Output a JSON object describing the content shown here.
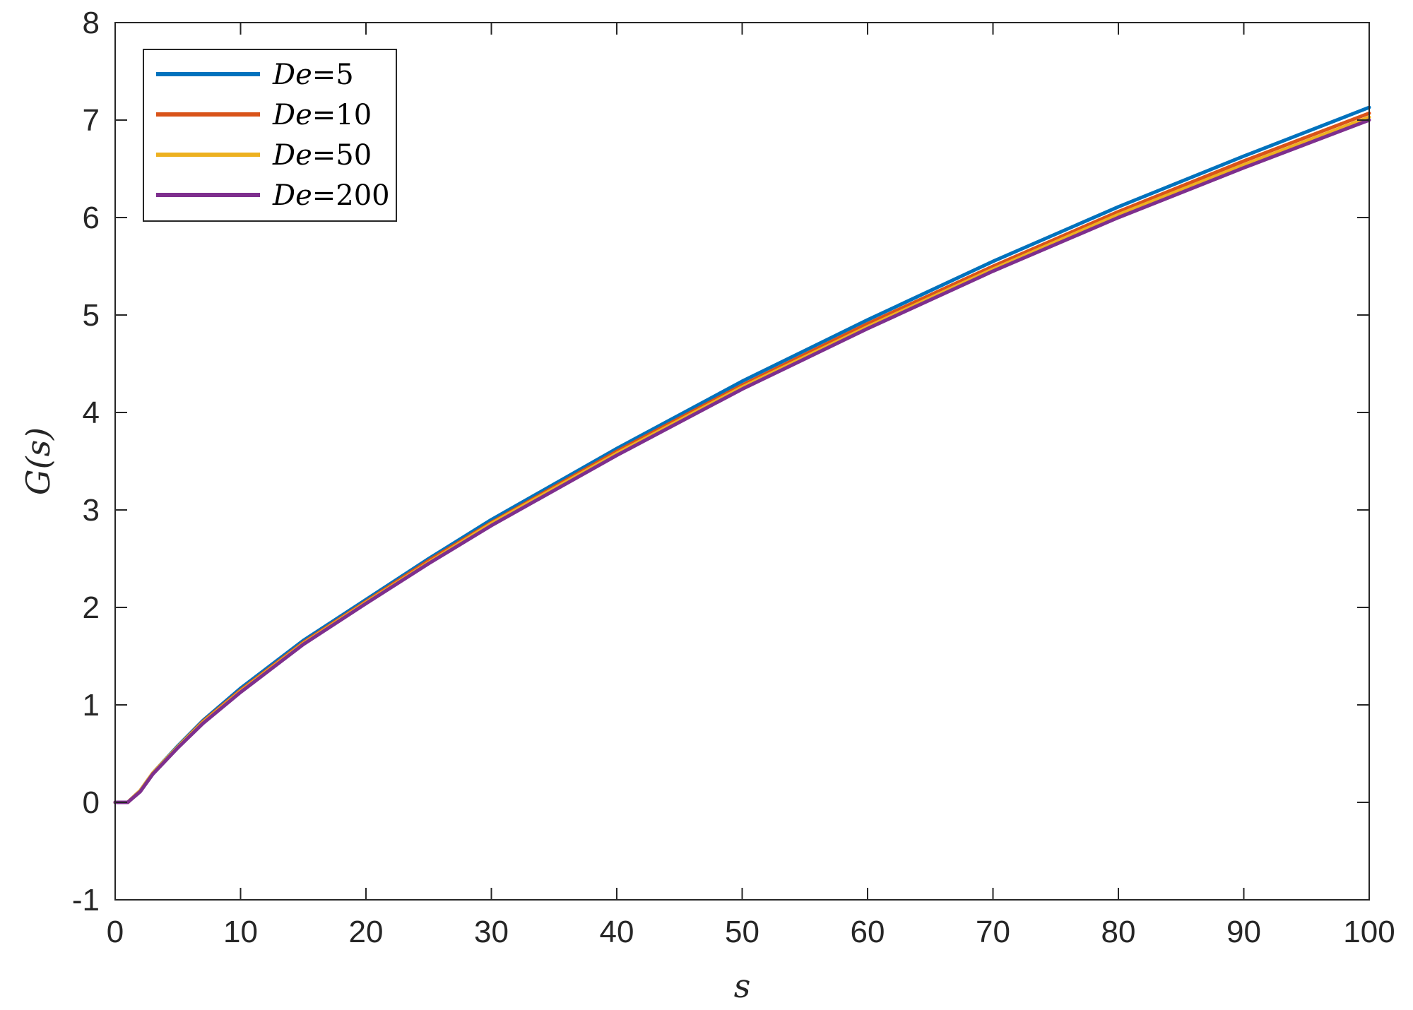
{
  "chart_data": {
    "type": "line",
    "title": "",
    "xlabel": "s",
    "ylabel": "G(s)",
    "xlim": [
      0,
      100
    ],
    "ylim": [
      -1,
      8
    ],
    "xticks": [
      "0",
      "10",
      "20",
      "30",
      "40",
      "50",
      "60",
      "70",
      "80",
      "90",
      "100"
    ],
    "yticks": [
      "-1",
      "0",
      "1",
      "2",
      "3",
      "4",
      "5",
      "6",
      "7",
      "8"
    ],
    "grid": false,
    "legend_position": "top-left",
    "x": [
      0,
      1,
      2,
      3,
      5,
      7,
      10,
      15,
      20,
      25,
      30,
      40,
      50,
      60,
      70,
      80,
      90,
      100
    ],
    "series": [
      {
        "name": "De=5",
        "label_parts": [
          "De",
          "=5"
        ],
        "color": "#0072BD",
        "values": [
          0,
          0,
          0.12,
          0.3,
          0.58,
          0.84,
          1.17,
          1.66,
          2.08,
          2.5,
          2.9,
          3.63,
          4.32,
          4.95,
          5.55,
          6.11,
          6.63,
          7.13
        ]
      },
      {
        "name": "De=10",
        "label_parts": [
          "De",
          "=10"
        ],
        "color": "#D95319",
        "values": [
          0,
          0,
          0.12,
          0.3,
          0.57,
          0.83,
          1.15,
          1.64,
          2.06,
          2.48,
          2.87,
          3.6,
          4.28,
          4.91,
          5.5,
          6.06,
          6.58,
          7.07
        ]
      },
      {
        "name": "De=50",
        "label_parts": [
          "De",
          "=50"
        ],
        "color": "#EDB120",
        "values": [
          0,
          0,
          0.12,
          0.3,
          0.57,
          0.82,
          1.14,
          1.63,
          2.05,
          2.46,
          2.86,
          3.58,
          4.26,
          4.88,
          5.47,
          6.03,
          6.54,
          7.03
        ]
      },
      {
        "name": "De=200",
        "label_parts": [
          "De",
          "=200"
        ],
        "color": "#7E2F8E",
        "values": [
          0,
          0,
          0.11,
          0.29,
          0.56,
          0.81,
          1.13,
          1.62,
          2.04,
          2.45,
          2.84,
          3.56,
          4.24,
          4.86,
          5.45,
          6.0,
          6.51,
          7.0
        ]
      }
    ]
  }
}
